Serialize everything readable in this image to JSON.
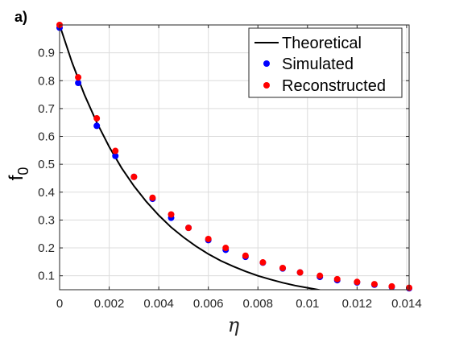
{
  "chart_data": {
    "type": "line",
    "panel_label": "a)",
    "title": "",
    "xlabel": "η",
    "ylabel": "f",
    "ylabel_subscript": "0",
    "xlim": [
      0,
      0.0141
    ],
    "ylim": [
      0.05,
      1.0
    ],
    "x_ticks": [
      0,
      0.002,
      0.004,
      0.006,
      0.008,
      0.01,
      0.012,
      0.014
    ],
    "x_tick_labels": [
      "0",
      "0.002",
      "0.004",
      "0.006",
      "0.008",
      "0.01",
      "0.012",
      "0.014"
    ],
    "y_ticks": [
      0.1,
      0.2,
      0.3,
      0.4,
      0.5,
      0.6,
      0.7,
      0.8,
      0.9
    ],
    "y_tick_labels": [
      "0.1",
      "0.2",
      "0.3",
      "0.4",
      "0.5",
      "0.6",
      "0.7",
      "0.8",
      "0.9"
    ],
    "grid": true,
    "legend_position": "top-right",
    "series": [
      {
        "name": "Theoretical",
        "style": "line",
        "color": "#000000",
        "x": [
          0,
          0.0005,
          0.001,
          0.0015,
          0.002,
          0.0025,
          0.003,
          0.0035,
          0.004,
          0.0045,
          0.005,
          0.0055,
          0.006,
          0.0065,
          0.007,
          0.0075,
          0.008,
          0.0085,
          0.009,
          0.0095,
          0.01,
          0.0105,
          0.011,
          0.0115,
          0.012,
          0.0125,
          0.013,
          0.0135,
          0.014,
          0.0141
        ],
        "y": [
          1.0,
          0.866,
          0.75,
          0.65,
          0.563,
          0.487,
          0.422,
          0.366,
          0.317,
          0.274,
          0.238,
          0.206,
          0.178,
          0.154,
          0.134,
          0.116,
          0.1,
          0.087,
          0.075,
          0.065,
          0.057,
          0.049,
          0.042,
          0.037,
          0.032,
          0.028,
          0.024,
          0.021,
          0.018,
          0.0175
        ]
      },
      {
        "name": "Simulated",
        "style": "markers",
        "color": "#0000FF",
        "x": [
          0,
          0.00075,
          0.0015,
          0.00225,
          0.003,
          0.00375,
          0.0045,
          0.0052,
          0.006,
          0.0067,
          0.0075,
          0.0082,
          0.009,
          0.0097,
          0.0105,
          0.0112,
          0.012,
          0.0127,
          0.0134,
          0.0141
        ],
        "y": [
          0.99,
          0.792,
          0.638,
          0.53,
          0.455,
          0.376,
          0.308,
          0.272,
          0.228,
          0.193,
          0.168,
          0.147,
          0.126,
          0.112,
          0.096,
          0.084,
          0.076,
          0.068,
          0.06,
          0.055
        ]
      },
      {
        "name": "Reconstructed",
        "style": "markers",
        "color": "#FF0000",
        "x": [
          0,
          0.00075,
          0.0015,
          0.00225,
          0.003,
          0.00375,
          0.0045,
          0.0052,
          0.006,
          0.0067,
          0.0075,
          0.0082,
          0.009,
          0.0097,
          0.0105,
          0.0112,
          0.012,
          0.0127,
          0.0134,
          0.0141
        ],
        "y": [
          1.0,
          0.812,
          0.665,
          0.548,
          0.455,
          0.38,
          0.32,
          0.272,
          0.232,
          0.2,
          0.172,
          0.148,
          0.128,
          0.112,
          0.1,
          0.088,
          0.078,
          0.07,
          0.062,
          0.057
        ]
      }
    ]
  }
}
